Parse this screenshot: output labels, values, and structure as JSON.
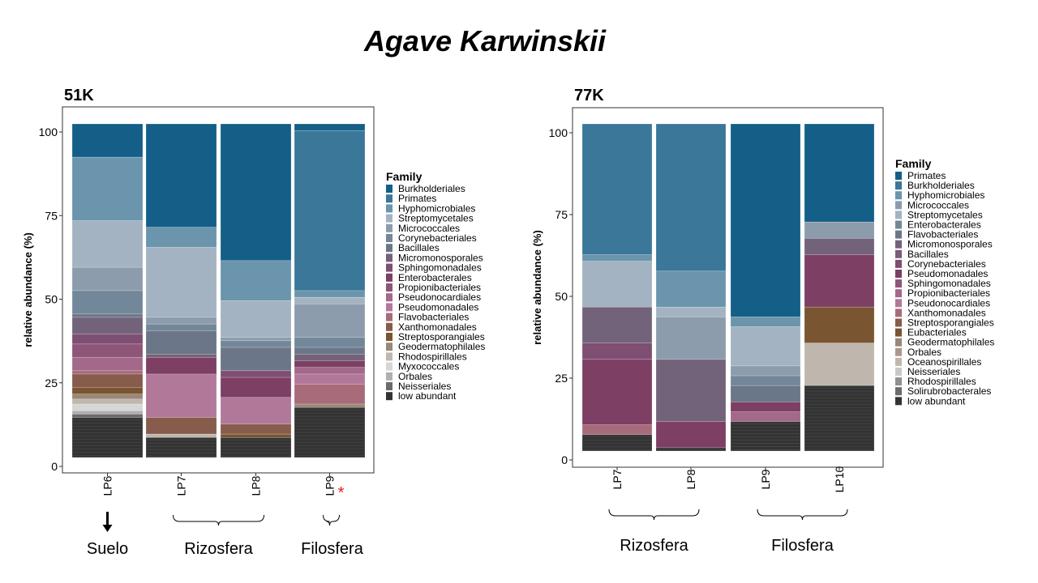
{
  "title": "Agave Karwinskii",
  "chart_data": [
    {
      "type": "bar",
      "stacked": true,
      "title": "51K",
      "ylabel": "relative abundance (%)",
      "ylim": [
        0,
        100
      ],
      "yticks": [
        0,
        25,
        50,
        75,
        100
      ],
      "legend_title": "Family",
      "legend": [
        "Burkholderiales",
        "Primates",
        "Hyphomicrobiales",
        "Streptomycetales",
        "Micrococcales",
        "Corynebacteriales",
        "Bacillales",
        "Micromonosporales",
        "Sphingomonadales",
        "Enterobacterales",
        "Propionibacteriales",
        "Pseudonocardiales",
        "Pseudomonadales",
        "Flavobacteriales",
        "Xanthomonadales",
        "Streptosporangiales",
        "Geodermatophilales",
        "Rhodospirillales",
        "Myxococcales",
        "Orbales",
        "Neisseriales",
        "low abundant"
      ],
      "categories": [
        "LP6",
        "LP7",
        "LP8",
        "LP9"
      ],
      "marker": {
        "category": "LP9",
        "text": "*",
        "color": "#e41a1c"
      },
      "groups": [
        {
          "label": "Suelo",
          "from": "LP6",
          "to": "LP6",
          "style": "arrow"
        },
        {
          "label": "Rizosfera",
          "from": "LP7",
          "to": "LP8",
          "style": "brace"
        },
        {
          "label": "Filosfera",
          "from": "LP9",
          "to": "LP9",
          "style": "brace"
        }
      ],
      "colors": {
        "Burkholderiales": "#145f87",
        "Primates": "#3a7799",
        "Hyphomicrobiales": "#6a95ad",
        "Streptomycetales": "#a3b3c1",
        "Micrococcales": "#8d9cac",
        "Corynebacteriales": "#72879a",
        "Bacillales": "#6b7788",
        "Micromonosporales": "#73637a",
        "Sphingomonadales": "#7e4f72",
        "Enterobacterales": "#7d3f63",
        "Propionibacteriales": "#8e5578",
        "Pseudonocardiales": "#a3688a",
        "Pseudomonadales": "#b2789a",
        "Flavobacteriales": "#a86b7a",
        "Xanthomonadales": "#875c4c",
        "Streptosporangiales": "#7a5532",
        "Geodermatophilales": "#9a8776",
        "Rhodospirillales": "#bfb7ad",
        "Myxococcales": "#d6d6d6",
        "Orbales": "#b0b0b0",
        "Neisseriales": "#6b6b6b",
        "low abundant": "#333333"
      },
      "bars": [
        {
          "category": "LP6",
          "segments": [
            {
              "family": "Burkholderiales",
              "value": 10
            },
            {
              "family": "Hyphomicrobiales",
              "value": 19
            },
            {
              "family": "Streptomycetales",
              "value": 14
            },
            {
              "family": "Micrococcales",
              "value": 7
            },
            {
              "family": "Corynebacteriales",
              "value": 7
            },
            {
              "family": "Bacillales",
              "value": 1
            },
            {
              "family": "Micromonosporales",
              "value": 5
            },
            {
              "family": "Sphingomonadales",
              "value": 3
            },
            {
              "family": "Propionibacteriales",
              "value": 4
            },
            {
              "family": "Pseudonocardiales",
              "value": 4
            },
            {
              "family": "Flavobacteriales",
              "value": 1
            },
            {
              "family": "Xanthomonadales",
              "value": 4
            },
            {
              "family": "Streptosporangiales",
              "value": 2
            },
            {
              "family": "Geodermatophilales",
              "value": 1.5
            },
            {
              "family": "Rhodospirillales",
              "value": 1.5
            },
            {
              "family": "Myxococcales",
              "value": 2
            },
            {
              "family": "Orbales",
              "value": 1
            },
            {
              "family": "Neisseriales",
              "value": 1
            },
            {
              "family": "low abundant",
              "value": 12
            }
          ]
        },
        {
          "category": "LP7",
          "segments": [
            {
              "family": "Burkholderiales",
              "value": 31
            },
            {
              "family": "Hyphomicrobiales",
              "value": 6
            },
            {
              "family": "Streptomycetales",
              "value": 21
            },
            {
              "family": "Micrococcales",
              "value": 2
            },
            {
              "family": "Corynebacteriales",
              "value": 2
            },
            {
              "family": "Bacillales",
              "value": 7
            },
            {
              "family": "Micromonosporales",
              "value": 1
            },
            {
              "family": "Enterobacterales",
              "value": 5
            },
            {
              "family": "Pseudomonadales",
              "value": 13
            },
            {
              "family": "Xanthomonadales",
              "value": 5
            },
            {
              "family": "Rhodospirillales",
              "value": 1
            },
            {
              "family": "low abundant",
              "value": 6
            }
          ]
        },
        {
          "category": "LP8",
          "segments": [
            {
              "family": "Burkholderiales",
              "value": 41
            },
            {
              "family": "Hyphomicrobiales",
              "value": 12
            },
            {
              "family": "Streptomycetales",
              "value": 11
            },
            {
              "family": "Micrococcales",
              "value": 1
            },
            {
              "family": "Corynebacteriales",
              "value": 2
            },
            {
              "family": "Bacillales",
              "value": 7
            },
            {
              "family": "Sphingomonadales",
              "value": 2
            },
            {
              "family": "Enterobacterales",
              "value": 6
            },
            {
              "family": "Pseudomonadales",
              "value": 8
            },
            {
              "family": "Xanthomonadales",
              "value": 3
            },
            {
              "family": "Streptosporangiales",
              "value": 1
            },
            {
              "family": "low abundant",
              "value": 6
            }
          ]
        },
        {
          "category": "LP9",
          "segments": [
            {
              "family": "Burkholderiales",
              "value": 2
            },
            {
              "family": "Primates",
              "value": 48
            },
            {
              "family": "Hyphomicrobiales",
              "value": 2
            },
            {
              "family": "Streptomycetales",
              "value": 2
            },
            {
              "family": "Micrococcales",
              "value": 10
            },
            {
              "family": "Corynebacteriales",
              "value": 3
            },
            {
              "family": "Bacillales",
              "value": 2
            },
            {
              "family": "Micromonosporales",
              "value": 2
            },
            {
              "family": "Enterobacterales",
              "value": 2
            },
            {
              "family": "Pseudonocardiales",
              "value": 2
            },
            {
              "family": "Pseudomonadales",
              "value": 3
            },
            {
              "family": "Flavobacteriales",
              "value": 6
            },
            {
              "family": "Geodermatophilales",
              "value": 1
            },
            {
              "family": "low abundant",
              "value": 15
            }
          ]
        }
      ]
    },
    {
      "type": "bar",
      "stacked": true,
      "title": "77K",
      "ylabel": "relative abundance (%)",
      "ylim": [
        0,
        100
      ],
      "yticks": [
        0,
        25,
        50,
        75,
        100
      ],
      "legend_title": "Family",
      "legend": [
        "Primates",
        "Burkholderiales",
        "Hyphomicrobiales",
        "Micrococcales",
        "Streptomycetales",
        "Enterobacterales",
        "Flavobacteriales",
        "Micromonosporales",
        "Bacillales",
        "Corynebacteriales",
        "Pseudomonadales",
        "Sphingomonadales",
        "Propionibacteriales",
        "Pseudonocardiales",
        "Xanthomonadales",
        "Streptosporangiales",
        "Eubacteriales",
        "Geodermatophilales",
        "Orbales",
        "Oceanospirillales",
        "Neisseriales",
        "Rhodospirillales",
        "Solirubrobacterales",
        "low abundant"
      ],
      "categories": [
        "LP7",
        "LP8",
        "LP9",
        "LP10"
      ],
      "groups": [
        {
          "label": "Rizosfera",
          "from": "LP7",
          "to": "LP8",
          "style": "brace"
        },
        {
          "label": "Filosfera",
          "from": "LP9",
          "to": "LP10",
          "style": "brace"
        }
      ],
      "colors": {
        "Primates": "#145f87",
        "Burkholderiales": "#3a7799",
        "Hyphomicrobiales": "#6a95ad",
        "Micrococcales": "#8d9cac",
        "Streptomycetales": "#a3b3c1",
        "Enterobacterales": "#72879a",
        "Flavobacteriales": "#6b7788",
        "Micromonosporales": "#73637a",
        "Bacillales": "#7a5c7a",
        "Corynebacteriales": "#7e4f72",
        "Pseudomonadales": "#7d3f63",
        "Sphingomonadales": "#8e5578",
        "Propionibacteriales": "#a3688a",
        "Pseudonocardiales": "#b2789a",
        "Xanthomonadales": "#a86b7a",
        "Streptosporangiales": "#875c4c",
        "Eubacteriales": "#7a5532",
        "Geodermatophilales": "#9a8776",
        "Orbales": "#a8998c",
        "Oceanospirillales": "#bfb7ad",
        "Neisseriales": "#c8c8c8",
        "Rhodospirillales": "#909090",
        "Solirubrobacterales": "#6b6b6b",
        "low abundant": "#333333"
      },
      "bars": [
        {
          "category": "LP7",
          "segments": [
            {
              "family": "Burkholderiales",
              "value": 40
            },
            {
              "family": "Hyphomicrobiales",
              "value": 2
            },
            {
              "family": "Streptomycetales",
              "value": 14
            },
            {
              "family": "Micromonosporales",
              "value": 11
            },
            {
              "family": "Corynebacteriales",
              "value": 5
            },
            {
              "family": "Pseudomonadales",
              "value": 20
            },
            {
              "family": "Xanthomonadales",
              "value": 3
            },
            {
              "family": "low abundant",
              "value": 5
            }
          ]
        },
        {
          "category": "LP8",
          "segments": [
            {
              "family": "Burkholderiales",
              "value": 45
            },
            {
              "family": "Hyphomicrobiales",
              "value": 11
            },
            {
              "family": "Streptomycetales",
              "value": 3
            },
            {
              "family": "Micrococcales",
              "value": 13
            },
            {
              "family": "Micromonosporales",
              "value": 19
            },
            {
              "family": "Pseudomonadales",
              "value": 8
            },
            {
              "family": "low abundant",
              "value": 1
            }
          ]
        },
        {
          "category": "LP9",
          "segments": [
            {
              "family": "Primates",
              "value": 59
            },
            {
              "family": "Hyphomicrobiales",
              "value": 3
            },
            {
              "family": "Streptomycetales",
              "value": 12
            },
            {
              "family": "Micrococcales",
              "value": 3
            },
            {
              "family": "Enterobacterales",
              "value": 3
            },
            {
              "family": "Flavobacteriales",
              "value": 5
            },
            {
              "family": "Pseudomonadales",
              "value": 3
            },
            {
              "family": "Propionibacteriales",
              "value": 3
            },
            {
              "family": "low abundant",
              "value": 9
            }
          ]
        },
        {
          "category": "LP10",
          "segments": [
            {
              "family": "Primates",
              "value": 30
            },
            {
              "family": "Micrococcales",
              "value": 5
            },
            {
              "family": "Micromonosporales",
              "value": 5
            },
            {
              "family": "Pseudomonadales",
              "value": 16
            },
            {
              "family": "Eubacteriales",
              "value": 11
            },
            {
              "family": "Oceanospirillales",
              "value": 13
            },
            {
              "family": "low abundant",
              "value": 20
            }
          ]
        }
      ]
    }
  ]
}
